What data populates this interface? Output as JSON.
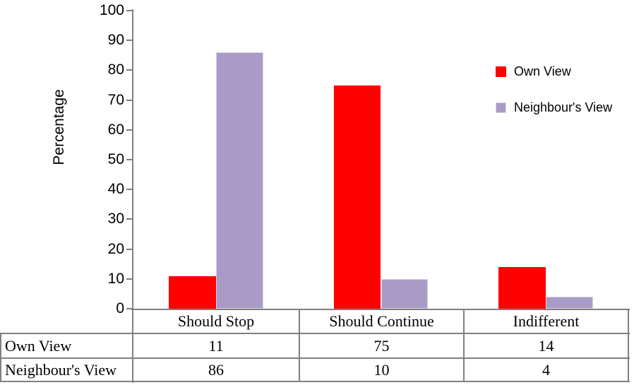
{
  "chart_data": {
    "type": "bar",
    "title": "",
    "ylabel": "Percentage",
    "categories": [
      "Should Stop",
      "Should Continue",
      "Indifferent"
    ],
    "series": [
      {
        "name": "Own View",
        "color": "#FF0000",
        "values": [
          11,
          75,
          14
        ]
      },
      {
        "name": "Neighbour's View",
        "color": "#A89BC8",
        "values": [
          86,
          10,
          4
        ]
      }
    ],
    "ylim": [
      0,
      100
    ],
    "ytick_step": 10,
    "grid": false,
    "legend_position": "right",
    "axis_color": "#808080"
  },
  "data_table": {
    "col_headers": [
      "Should Stop",
      "Should Continue",
      "Indifferent"
    ],
    "rows": [
      {
        "label": "Own View",
        "values": [
          "11",
          "75",
          "14"
        ]
      },
      {
        "label": "Neighbour's View",
        "values": [
          "86",
          "10",
          "4"
        ]
      }
    ],
    "border_color": "#808080"
  },
  "colors": {
    "own_view": "#FF0000",
    "neighbours_view": "#A89BC8",
    "neighbours_view_border": "#d9d3e6",
    "axis_gray": "#808080"
  }
}
